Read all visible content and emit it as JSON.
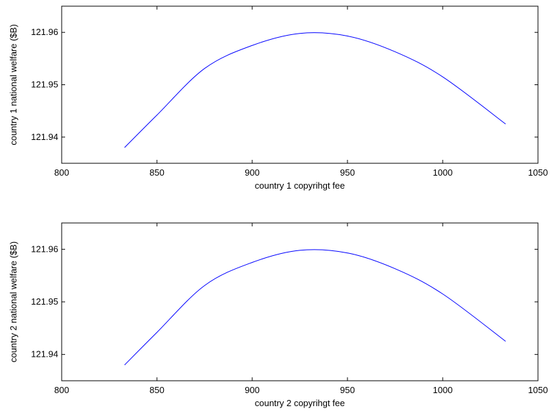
{
  "chart_data": [
    {
      "type": "line",
      "title": "",
      "xlabel": "country 1 copyrihgt fee",
      "ylabel": "country 1 national welfare ($B)",
      "xlim": [
        800,
        1050
      ],
      "ylim": [
        121.935,
        121.965
      ],
      "xticks": [
        "800",
        "850",
        "900",
        "950",
        "1000",
        "1050"
      ],
      "yticks": [
        "121.94",
        "121.95",
        "121.96"
      ],
      "grid": false,
      "series_color": "#0000ff",
      "series": [
        {
          "x": [
            833,
            850,
            875,
            900,
            925,
            950,
            975,
            1000,
            1033
          ],
          "y": [
            121.938,
            121.9442,
            121.9531,
            121.9575,
            121.9598,
            121.9593,
            121.9563,
            121.9515,
            121.9425
          ]
        }
      ]
    },
    {
      "type": "line",
      "title": "",
      "xlabel": "country 2 copyrihgt fee",
      "ylabel": "country 2 national welfare ($B)",
      "xlim": [
        800,
        1050
      ],
      "ylim": [
        121.935,
        121.965
      ],
      "xticks": [
        "800",
        "850",
        "900",
        "950",
        "1000",
        "1050"
      ],
      "yticks": [
        "121.94",
        "121.95",
        "121.96"
      ],
      "grid": false,
      "series_color": "#0000ff",
      "series": [
        {
          "x": [
            833,
            850,
            875,
            900,
            925,
            950,
            975,
            1000,
            1033
          ],
          "y": [
            121.938,
            121.9442,
            121.9531,
            121.9575,
            121.9598,
            121.9593,
            121.9563,
            121.9515,
            121.9425
          ]
        }
      ]
    }
  ]
}
